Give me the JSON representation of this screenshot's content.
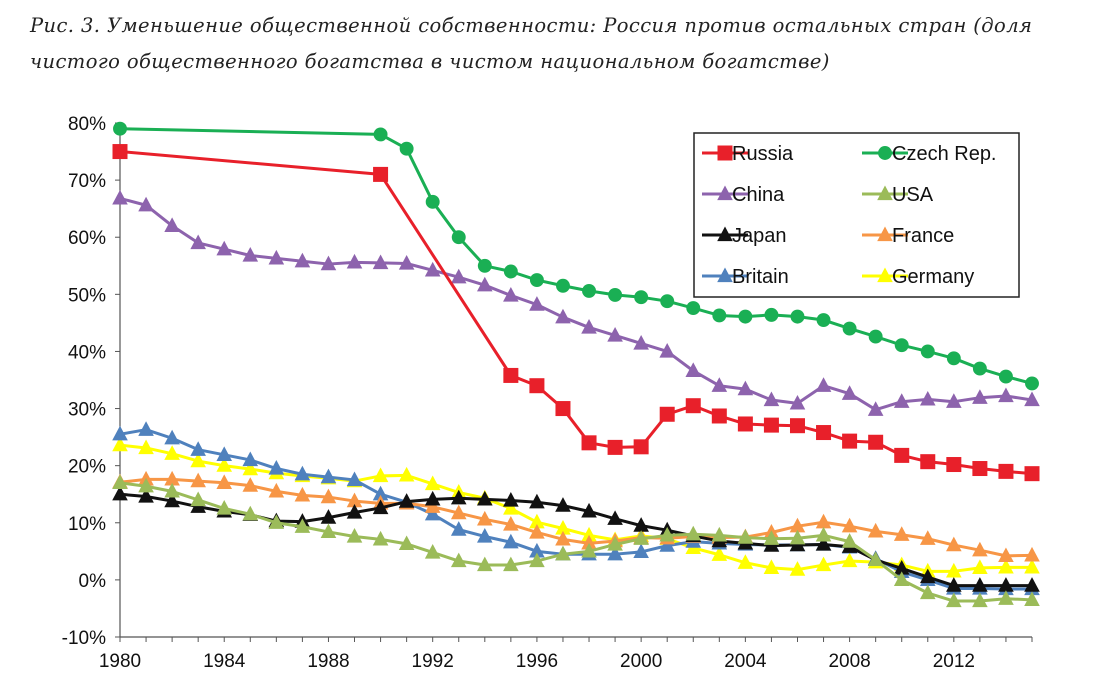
{
  "caption": {
    "line1": "Рис. 3. Уменьшение общественной собственности: Россия против остальных стран (доля",
    "line2": "чистого общественного богатства в чистом национальном богатстве)"
  },
  "chart_data": {
    "type": "line",
    "title": "",
    "xlabel": "",
    "ylabel": "",
    "xlim": [
      1980,
      2015
    ],
    "ylim": [
      -10,
      80
    ],
    "grid": false,
    "legend_placement": "top-right",
    "x_ticks": [
      "1980",
      "1984",
      "1988",
      "1992",
      "1996",
      "2000",
      "2004",
      "2008",
      "2012"
    ],
    "y_ticks": [
      "-10%",
      "0%",
      "10%",
      "20%",
      "30%",
      "40%",
      "50%",
      "60%",
      "70%",
      "80%"
    ],
    "series": [
      {
        "name": "Russia",
        "color": "#e8202a",
        "marker": "square",
        "x": [
          1980,
          1990,
          1995,
          1996,
          1997,
          1998,
          1999,
          2000,
          2001,
          2002,
          2003,
          2004,
          2005,
          2006,
          2007,
          2008,
          2009,
          2010,
          2011,
          2012,
          2013,
          2014,
          2015
        ],
        "y": [
          75,
          71,
          35.8,
          34,
          30,
          24,
          23.2,
          23.3,
          29,
          30.5,
          28.7,
          27.3,
          27.1,
          27,
          25.8,
          24.3,
          24.1,
          21.8,
          20.7,
          20.2,
          19.5,
          19,
          18.6
        ]
      },
      {
        "name": "Czech Rep.",
        "color": "#1aaf54",
        "marker": "circle",
        "x": [
          1980,
          1990,
          1991,
          1992,
          1993,
          1994,
          1995,
          1996,
          1997,
          1998,
          1999,
          2000,
          2001,
          2002,
          2003,
          2004,
          2005,
          2006,
          2007,
          2008,
          2009,
          2010,
          2011,
          2012,
          2013,
          2014,
          2015
        ],
        "y": [
          79,
          78,
          75.5,
          66.2,
          60,
          55,
          54,
          52.5,
          51.5,
          50.6,
          49.9,
          49.5,
          48.8,
          47.6,
          46.3,
          46.1,
          46.4,
          46.1,
          45.5,
          44,
          42.6,
          41.1,
          40,
          38.8,
          37,
          35.6,
          34.4
        ]
      },
      {
        "name": "China",
        "color": "#8d63ad",
        "marker": "triangle",
        "x": [
          1980,
          1981,
          1982,
          1983,
          1984,
          1985,
          1986,
          1987,
          1988,
          1989,
          1990,
          1991,
          1992,
          1993,
          1994,
          1995,
          1996,
          1997,
          1998,
          1999,
          2000,
          2001,
          2002,
          2003,
          2004,
          2005,
          2006,
          2007,
          2008,
          2009,
          2010,
          2011,
          2012,
          2013,
          2014,
          2015
        ],
        "y": [
          66.8,
          65.6,
          62,
          59,
          57.9,
          56.8,
          56.3,
          55.8,
          55.3,
          55.6,
          55.5,
          55.4,
          54.2,
          53,
          51.6,
          49.8,
          48.2,
          46,
          44.2,
          42.8,
          41.4,
          40,
          36.6,
          34,
          33.4,
          31.5,
          30.9,
          34,
          32.6,
          29.8,
          31.2,
          31.6,
          31.2,
          31.9,
          32.2,
          31.5
        ]
      },
      {
        "name": "USA",
        "color": "#9bbb59",
        "marker": "triangle",
        "x": [
          1980,
          1981,
          1982,
          1983,
          1984,
          1985,
          1986,
          1987,
          1988,
          1989,
          1990,
          1991,
          1992,
          1993,
          1994,
          1995,
          1996,
          1997,
          1998,
          1999,
          2000,
          2001,
          2002,
          2003,
          2004,
          2005,
          2006,
          2007,
          2008,
          2009,
          2010,
          2011,
          2012,
          2013,
          2014,
          2015
        ],
        "y": [
          17,
          16.4,
          15.5,
          14,
          12.5,
          11.5,
          10,
          9.3,
          8.4,
          7.6,
          7.1,
          6.3,
          4.8,
          3.3,
          2.6,
          2.6,
          3.3,
          4.5,
          5,
          6.2,
          7.2,
          7.8,
          8,
          7.8,
          7.4,
          7.2,
          7.3,
          7.8,
          6.7,
          3.5,
          0,
          -2.3,
          -3.7,
          -3.7,
          -3.3,
          -3.5
        ]
      },
      {
        "name": "Japan",
        "color": "#111111",
        "marker": "triangle",
        "x": [
          1980,
          1981,
          1982,
          1983,
          1984,
          1985,
          1986,
          1987,
          1988,
          1989,
          1990,
          1991,
          1992,
          1993,
          1994,
          1995,
          1996,
          1997,
          1998,
          1999,
          2000,
          2001,
          2002,
          2003,
          2004,
          2005,
          2006,
          2007,
          2008,
          2009,
          2010,
          2011,
          2012,
          2013,
          2014,
          2015
        ],
        "y": [
          15,
          14.6,
          13.8,
          12.8,
          12,
          11.4,
          10.3,
          10.2,
          10.9,
          11.8,
          12.6,
          13.7,
          14.1,
          14.3,
          14.1,
          13.9,
          13.6,
          13,
          12,
          10.7,
          9.5,
          8.7,
          7.7,
          6.8,
          6.4,
          6,
          6.1,
          6.2,
          5.8,
          3.5,
          2,
          0.5,
          -1,
          -1,
          -1,
          -1
        ]
      },
      {
        "name": "France",
        "color": "#f79646",
        "marker": "triangle",
        "x": [
          1980,
          1981,
          1982,
          1983,
          1984,
          1985,
          1986,
          1987,
          1988,
          1989,
          1990,
          1991,
          1992,
          1993,
          1994,
          1995,
          1996,
          1997,
          1998,
          1999,
          2000,
          2001,
          2002,
          2003,
          2004,
          2005,
          2006,
          2007,
          2008,
          2009,
          2010,
          2011,
          2012,
          2013,
          2014,
          2015
        ],
        "y": [
          17.1,
          17.6,
          17.6,
          17.3,
          17,
          16.5,
          15.5,
          14.8,
          14.5,
          13.8,
          13.4,
          13.4,
          12.8,
          11.7,
          10.6,
          9.7,
          8.3,
          7.1,
          6.4,
          6.8,
          7.4,
          7.3,
          7.6,
          7.4,
          7.5,
          8.3,
          9.4,
          10.1,
          9.4,
          8.5,
          7.9,
          7.2,
          6.1,
          5.2,
          4.2,
          4.3
        ]
      },
      {
        "name": "Britain",
        "color": "#4f81bd",
        "marker": "triangle",
        "x": [
          1980,
          1981,
          1982,
          1983,
          1984,
          1985,
          1986,
          1987,
          1988,
          1989,
          1990,
          1991,
          1992,
          1993,
          1994,
          1995,
          1996,
          1997,
          1998,
          1999,
          2000,
          2001,
          2002,
          2003,
          2004,
          2005,
          2006,
          2007,
          2008,
          2009,
          2010,
          2011,
          2012,
          2013,
          2014,
          2015
        ],
        "y": [
          25.5,
          26.3,
          24.8,
          22.8,
          21.9,
          21,
          19.5,
          18.5,
          18,
          17.5,
          15,
          13.6,
          11.5,
          8.8,
          7.6,
          6.6,
          5,
          4.5,
          4.5,
          4.5,
          4.9,
          6,
          6.7,
          6.4,
          6.2,
          6.1,
          6.1,
          6.2,
          5.7,
          3.7,
          1.4,
          0,
          -1.5,
          -1.5,
          -1.6,
          -1.6
        ]
      },
      {
        "name": "Germany",
        "color": "#ffff00",
        "marker": "triangle",
        "x": [
          1980,
          1981,
          1982,
          1983,
          1984,
          1985,
          1986,
          1987,
          1988,
          1989,
          1990,
          1991,
          1992,
          1993,
          1994,
          1995,
          1996,
          1997,
          1998,
          1999,
          2000,
          2001,
          2002,
          2003,
          2004,
          2005,
          2006,
          2007,
          2008,
          2009,
          2010,
          2011,
          2012,
          2013,
          2014,
          2015
        ],
        "y": [
          23.6,
          23.1,
          22.1,
          20.8,
          20,
          19.4,
          18.7,
          18.2,
          17.8,
          17.3,
          18.2,
          18.3,
          16.8,
          15.3,
          14.3,
          12.5,
          10.1,
          9,
          7.8,
          7,
          7.7,
          7.2,
          5.6,
          4.4,
          3,
          2.1,
          1.8,
          2.6,
          3.3,
          3.1,
          2.6,
          1.5,
          1.5,
          2.1,
          2.2,
          2.2
        ]
      }
    ]
  }
}
